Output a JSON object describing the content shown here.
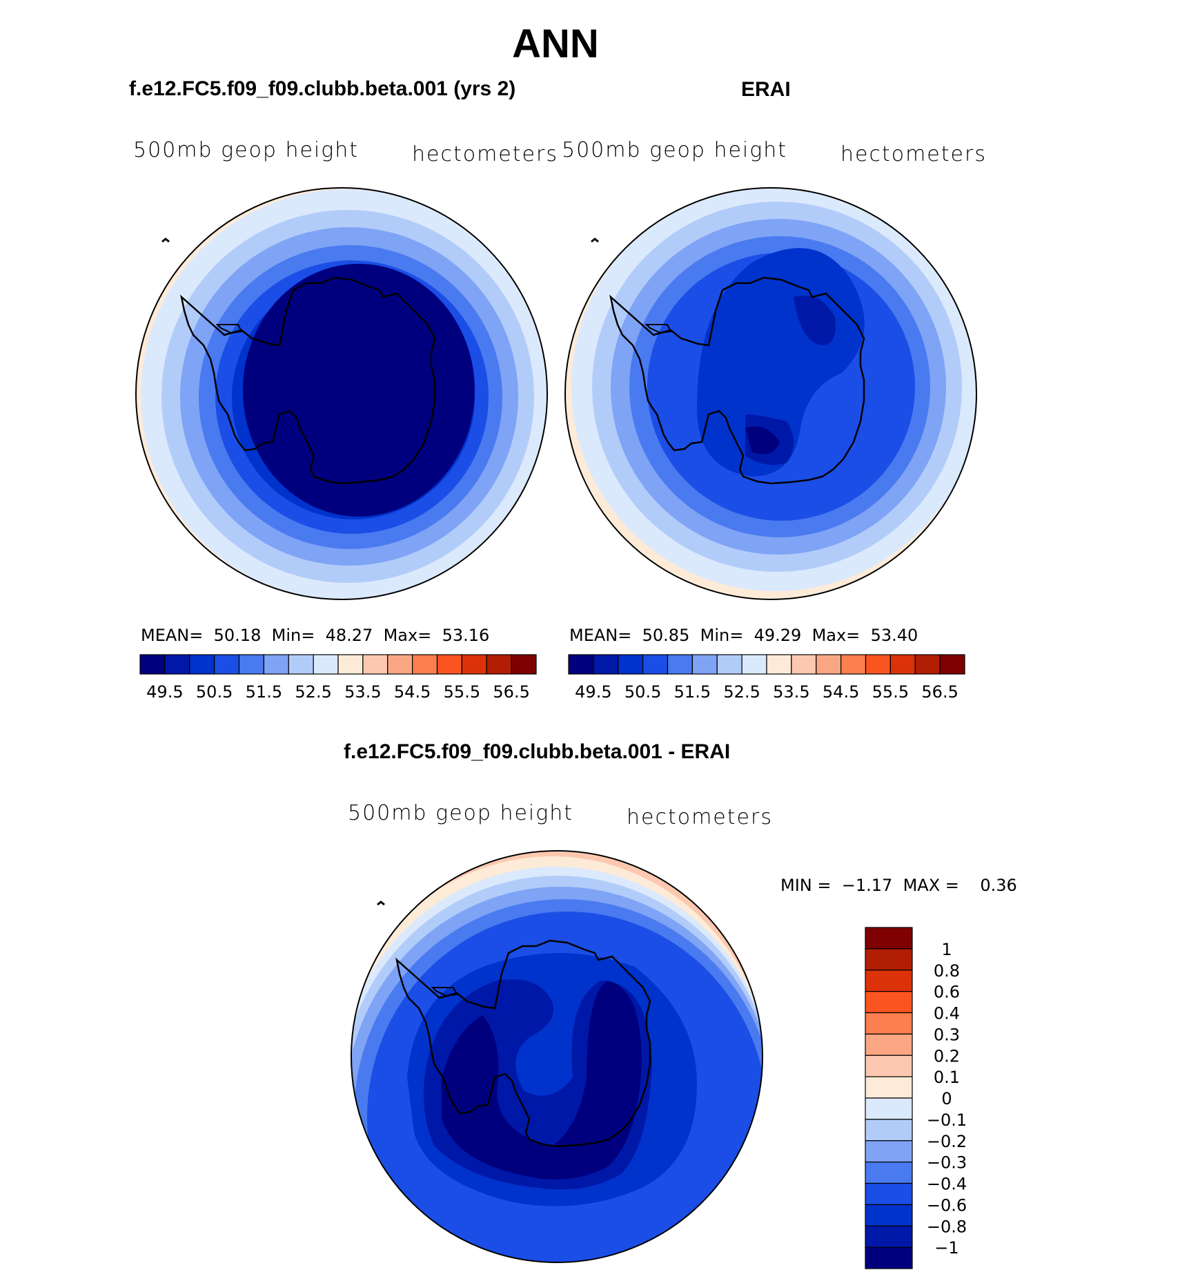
{
  "title": "ANN",
  "panels": [
    {
      "case_title": "f.e12.FC5.f09_f09.clubb.beta.001 (yrs 2)",
      "variable": "500mb geop height",
      "units": "hectometers",
      "stats": {
        "mean_label": "MEAN=",
        "mean": "50.18",
        "min_label": "Min=",
        "min": "48.27",
        "max_label": "Max=",
        "max": "53.16"
      }
    },
    {
      "case_title": "ERAI",
      "variable": "500mb geop height",
      "units": "hectometers",
      "stats": {
        "mean_label": "MEAN=",
        "mean": "50.85",
        "min_label": "Min=",
        "min": "49.29",
        "max_label": "Max=",
        "max": "53.40"
      }
    },
    {
      "case_title": "f.e12.FC5.f09_f09.clubb.beta.001 - ERAI",
      "variable": "500mb geop height",
      "units": "hectometers",
      "stats": {
        "min_label": "MIN =",
        "min": "−1.17",
        "max_label": "MAX =",
        "max": "0.36"
      }
    }
  ],
  "colorbars": {
    "abs_colors": [
      "#00007f",
      "#0018a8",
      "#0033cc",
      "#1a4ee6",
      "#4a7aef",
      "#7fa3f5",
      "#b2ccfa",
      "#dbe9fc",
      "#fdebd8",
      "#fcc9b0",
      "#fba783",
      "#fb7f4f",
      "#fa5521",
      "#dc3209",
      "#b21e03",
      "#7f0000"
    ],
    "abs_ticks": [
      "49.5",
      "50.5",
      "51.5",
      "52.5",
      "53.5",
      "54.5",
      "55.5",
      "56.5"
    ],
    "diff_colors": [
      "#00007f",
      "#0018a8",
      "#0033cc",
      "#1a4ee6",
      "#4a7aef",
      "#7fa3f5",
      "#b2ccfa",
      "#dbe9fc",
      "#fdebd8",
      "#fcc9b0",
      "#fba783",
      "#fb7f4f",
      "#fa5521",
      "#dc3209",
      "#b21e03",
      "#7f0000"
    ],
    "diff_ticks": [
      "−1",
      "−0.8",
      "−0.6",
      "−0.4",
      "−0.3",
      "−0.2",
      "−0.1",
      "0",
      "0.1",
      "0.2",
      "0.3",
      "0.4",
      "0.6",
      "0.8",
      "1"
    ]
  },
  "map_colors": {
    "band_outer": "#dbe9fc",
    "band_2": "#b2ccfa",
    "band_3": "#7fa3f5",
    "band_4": "#4a7aef",
    "band_5": "#1a4ee6",
    "band_6": "#0033cc",
    "band_7": "#0018a8",
    "band_core": "#00007f",
    "warm_1": "#fdebd8",
    "warm_2": "#fcc9b0",
    "warm_3": "#fba783",
    "warm_4": "#fb7f4f"
  }
}
